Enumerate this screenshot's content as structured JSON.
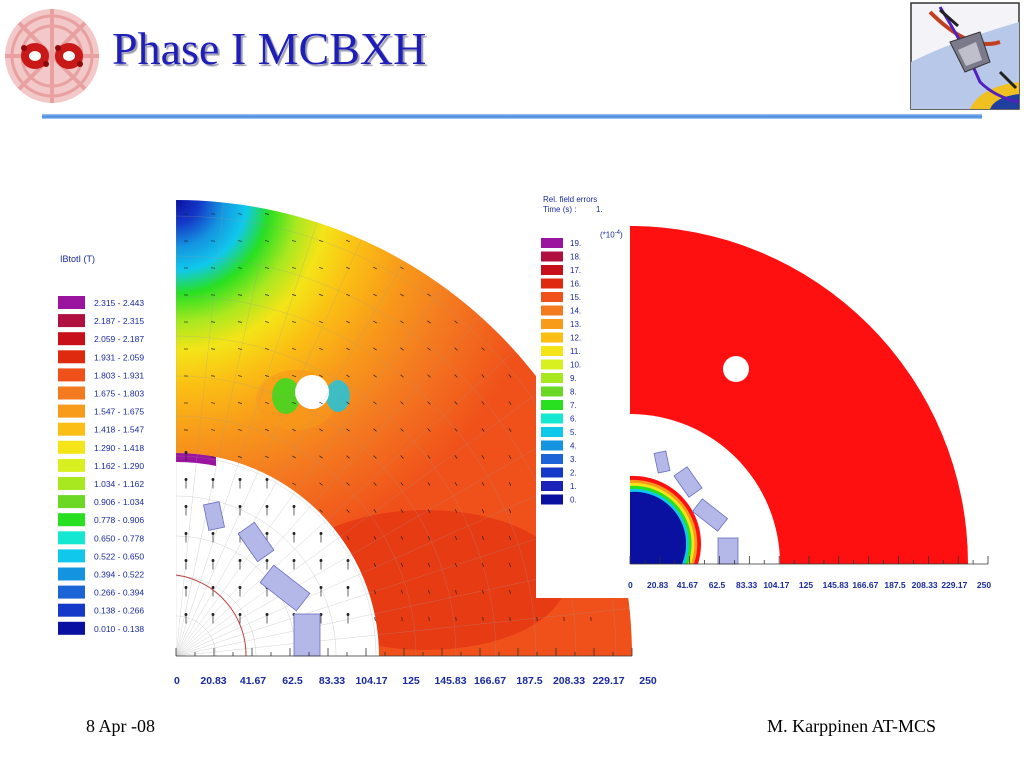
{
  "slide": {
    "title": "Phase I MCBXH",
    "footer_left": "8 Apr -08",
    "footer_right": "M. Karppinen AT-MCS"
  },
  "left_plot": {
    "legend_title": "IBtotI (T)",
    "legend": [
      {
        "range": "2.315 -   2.443",
        "color": "#9a14a0"
      },
      {
        "range": "2.187 -   2.315",
        "color": "#b01040"
      },
      {
        "range": "2.059 -   2.187",
        "color": "#c8101a"
      },
      {
        "range": "1.931 -   2.059",
        "color": "#e02a10"
      },
      {
        "range": "1.803 -   1.931",
        "color": "#f0501a"
      },
      {
        "range": "1.675 -   1.803",
        "color": "#f47a20"
      },
      {
        "range": "1.547 -   1.675",
        "color": "#f89a1a"
      },
      {
        "range": "1.418 -   1.547",
        "color": "#fbbe14"
      },
      {
        "range": "1.290 -   1.418",
        "color": "#f4e418"
      },
      {
        "range": "1.162 -   1.290",
        "color": "#d8f020"
      },
      {
        "range": "1.034 -   1.162",
        "color": "#a8e820"
      },
      {
        "range": "0.906 -   1.034",
        "color": "#6cd826"
      },
      {
        "range": "0.778 -   0.906",
        "color": "#28e020"
      },
      {
        "range": "0.650 -   0.778",
        "color": "#14e8d0"
      },
      {
        "range": "0.522 -   0.650",
        "color": "#10c8ec"
      },
      {
        "range": "0.394 -   0.522",
        "color": "#1494e0"
      },
      {
        "range": "0.266 -   0.394",
        "color": "#1a64d8"
      },
      {
        "range": "0.138 -   0.266",
        "color": "#1438c8"
      },
      {
        "range": "0.010 -   0.138",
        "color": "#0a10a0"
      }
    ],
    "axis_ticks": [
      "0",
      "20.83",
      "41.67",
      "62.5",
      "83.33",
      "104.17",
      "125",
      "145.83",
      "166.67",
      "187.5",
      "208.33",
      "229.17",
      "250"
    ]
  },
  "right_plot": {
    "legend_title_1": "Rel. field errors",
    "legend_title_2": "Time (s) :",
    "time_value": "1.",
    "exponent": "(*10",
    "exponent_power": "-4",
    "exponent_close": ")",
    "legend": [
      {
        "value": "19.",
        "color": "#9a14a0"
      },
      {
        "value": "18.",
        "color": "#b01040"
      },
      {
        "value": "17.",
        "color": "#c8101a"
      },
      {
        "value": "16.",
        "color": "#e02a10"
      },
      {
        "value": "15.",
        "color": "#f0501a"
      },
      {
        "value": "14.",
        "color": "#f47a20"
      },
      {
        "value": "13.",
        "color": "#f89a1a"
      },
      {
        "value": "12.",
        "color": "#fbbe14"
      },
      {
        "value": "11.",
        "color": "#f4e418"
      },
      {
        "value": "10.",
        "color": "#d8f020"
      },
      {
        "value": "9.",
        "color": "#a8e820"
      },
      {
        "value": "8.",
        "color": "#6cd826"
      },
      {
        "value": "7.",
        "color": "#28e020"
      },
      {
        "value": "6.",
        "color": "#14e8d0"
      },
      {
        "value": "5.",
        "color": "#10c8ec"
      },
      {
        "value": "4.",
        "color": "#1494e0"
      },
      {
        "value": "3.",
        "color": "#1a64d8"
      },
      {
        "value": "2.",
        "color": "#1438c8"
      },
      {
        "value": "1.",
        "color": "#1a22b8"
      },
      {
        "value": "0.",
        "color": "#0a10a0"
      }
    ],
    "axis_ticks": [
      "0",
      "20.83",
      "41.67",
      "62.5",
      "83.33",
      "104.17",
      "125",
      "145.83",
      "166.67",
      "187.5",
      "208.33",
      "229.17",
      "250"
    ]
  }
}
